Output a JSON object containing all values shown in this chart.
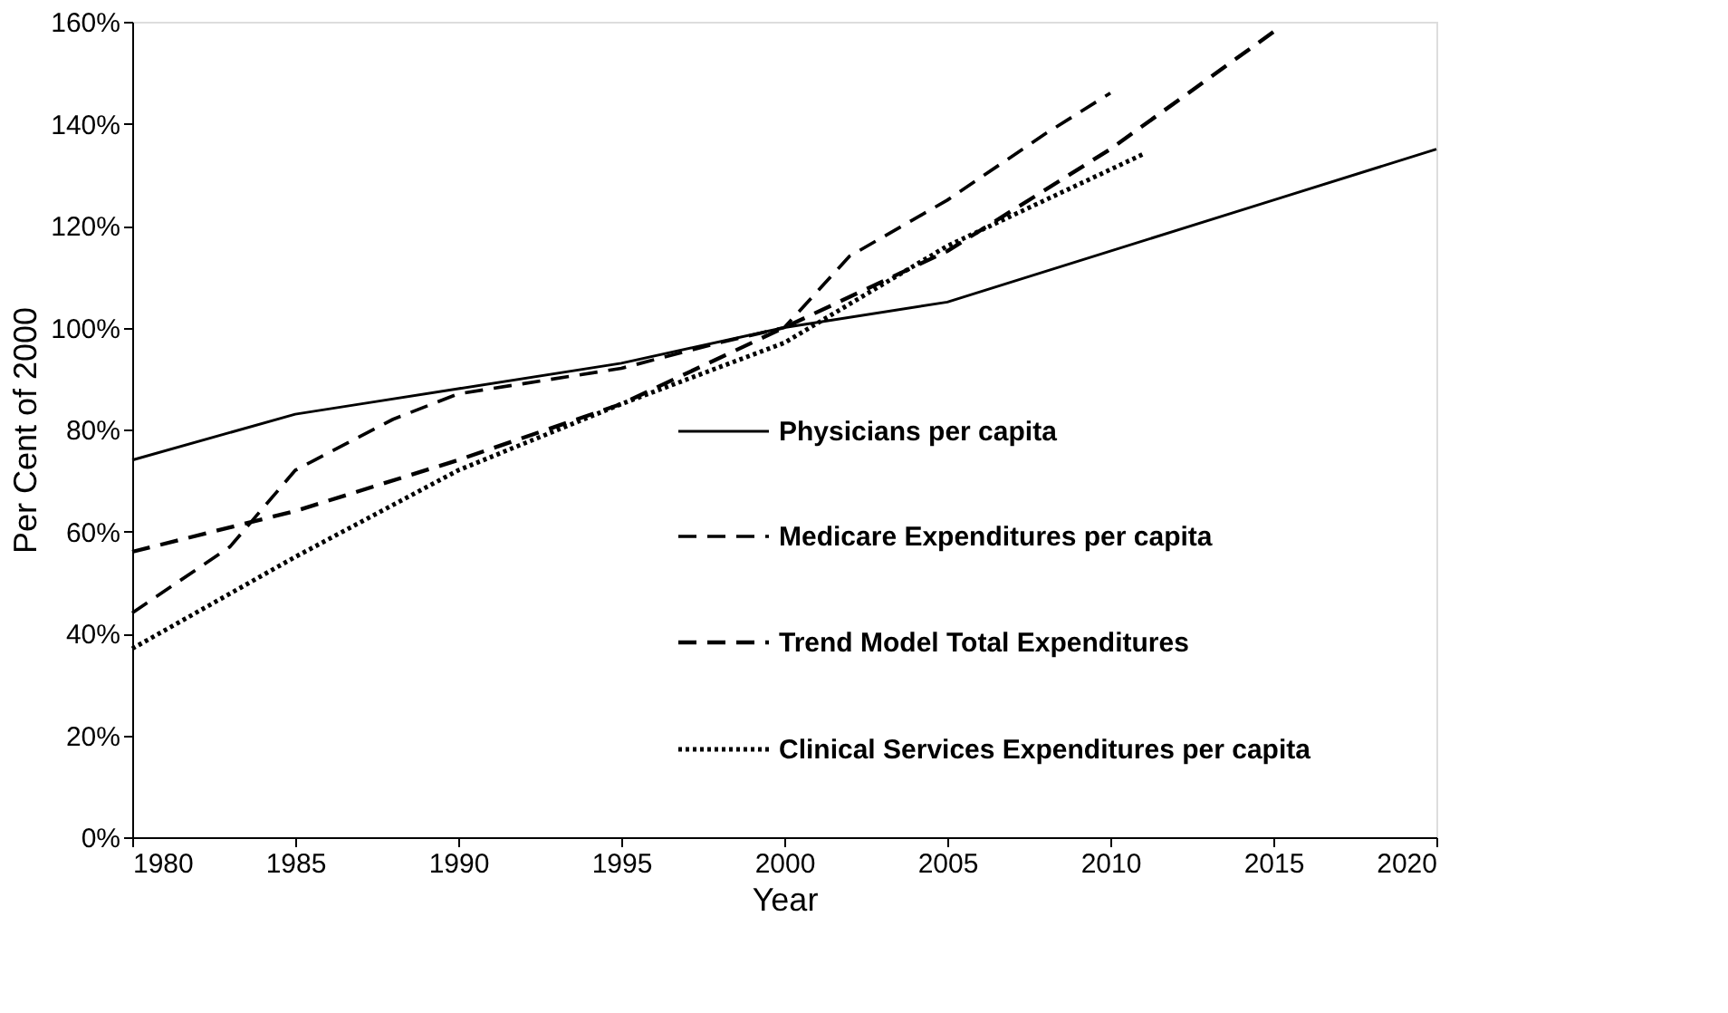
{
  "chart_data": {
    "type": "line",
    "xlabel": "Year",
    "ylabel": "Per Cent of 2000",
    "xlim": [
      1980,
      2020
    ],
    "xticks": [
      1980,
      1985,
      1990,
      1995,
      2000,
      2005,
      2010,
      2015,
      2020
    ],
    "ylim": [
      0,
      160
    ],
    "yticks": [
      {
        "value": 0,
        "label": "0%"
      },
      {
        "value": 20,
        "label": "20%"
      },
      {
        "value": 40,
        "label": "40%"
      },
      {
        "value": 60,
        "label": "60%"
      },
      {
        "value": 80,
        "label": "80%"
      },
      {
        "value": 100,
        "label": "100%"
      },
      {
        "value": 120,
        "label": "120%"
      },
      {
        "value": 140,
        "label": "140%"
      },
      {
        "value": 160,
        "label": "160%"
      }
    ],
    "grid": false,
    "legend": "right",
    "marker": "none",
    "series": [
      {
        "name": "Physicians per capita",
        "color": "#000000",
        "line_style": "solid",
        "x": [
          1980,
          1985,
          1987,
          1990,
          1995,
          2000,
          2005,
          2010,
          2015,
          2020
        ],
        "values": [
          74,
          83,
          85,
          88,
          93,
          100,
          105,
          115,
          125,
          135
        ]
      },
      {
        "name": "Medicare Expenditures per capita",
        "color": "#000000",
        "line_style": "dashed",
        "x": [
          1980,
          1983,
          1985,
          1988,
          1990,
          1995,
          1998,
          2000,
          2002,
          2005,
          2008,
          2010
        ],
        "values": [
          44,
          57,
          72,
          82,
          87,
          92,
          97,
          100,
          114,
          125,
          138,
          146
        ]
      },
      {
        "name": "Trend Model Total Expenditures",
        "color": "#000000",
        "line_style": "dashed",
        "x": [
          1980,
          1985,
          1990,
          1995,
          2000,
          2005,
          2010,
          2015
        ],
        "values": [
          56,
          64,
          74,
          85,
          100,
          115,
          135,
          158
        ]
      },
      {
        "name": "Clinical Services Expenditures per capita",
        "color": "#000000",
        "line_style": "dotted",
        "x": [
          1980,
          1985,
          1990,
          1995,
          2000,
          2005,
          2011
        ],
        "values": [
          37,
          55,
          72,
          85,
          97,
          116,
          134
        ]
      }
    ]
  }
}
